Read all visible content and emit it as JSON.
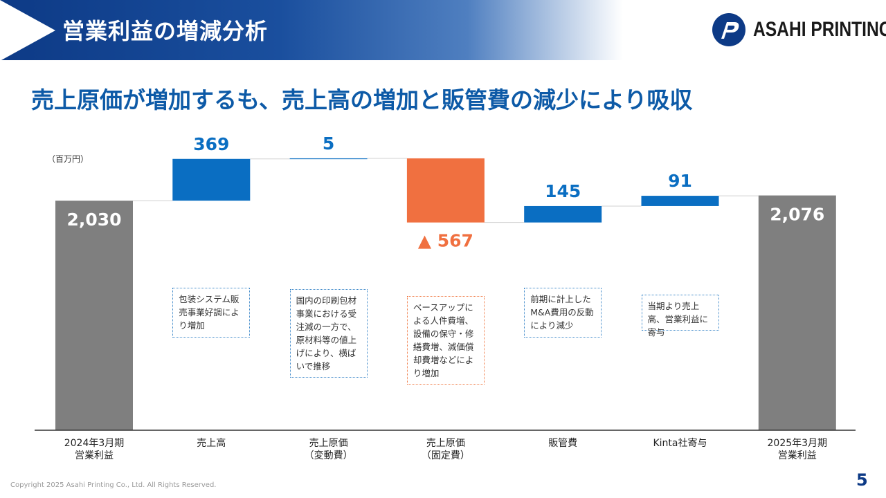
{
  "header": {
    "title": "営業利益の増減分析"
  },
  "logo": {
    "text": "ASAHI PRINTING"
  },
  "subtitle": "売上原価が増加するも、売上高の増加と販管費の減少により吸収",
  "unit": "（百万円）",
  "chart_data": {
    "type": "waterfall",
    "unit": "百万円",
    "categories": [
      [
        "2024年3月期",
        "営業利益"
      ],
      [
        "売上高"
      ],
      [
        "売上原価",
        "（変動費）"
      ],
      [
        "売上原価",
        "（固定費）"
      ],
      [
        "販管費"
      ],
      [
        "Kinta社寄与"
      ],
      [
        "2025年3月期",
        "営業利益"
      ]
    ],
    "steps": [
      {
        "kind": "total",
        "value": 2030,
        "label": "2,030"
      },
      {
        "kind": "increase",
        "value": 369,
        "label": "369"
      },
      {
        "kind": "increase",
        "value": 5,
        "label": "5"
      },
      {
        "kind": "decrease",
        "value": -567,
        "label": "▲ 567"
      },
      {
        "kind": "increase",
        "value": 145,
        "label": "145"
      },
      {
        "kind": "increase",
        "value": 91,
        "label": "91"
      },
      {
        "kind": "total",
        "value": 2076,
        "label": "2,076"
      }
    ],
    "colors": {
      "total": "#7f7f7f",
      "increase": "#0a6ec2",
      "decrease": "#f07040",
      "connector": "#d0d0d0",
      "axis": "#333333"
    }
  },
  "notes": [
    {
      "step": 1,
      "style": "blue",
      "text": "包装システム販売事業好調により増加"
    },
    {
      "step": 2,
      "style": "blue",
      "text": "国内の印刷包材事業における受注減の一方で、原材料等の値上げにより、横ばいで推移"
    },
    {
      "step": 3,
      "style": "orange",
      "text": "ベースアップによる人件費増、設備の保守・修繕費増、減価償却費増などにより増加"
    },
    {
      "step": 4,
      "style": "blue",
      "text": "前期に計上したM&A費用の反動により減少"
    },
    {
      "step": 5,
      "style": "blue",
      "text": "当期より売上高、営業利益に寄与"
    }
  ],
  "footer": {
    "copyright": "Copyright 2025 Asahi Printing Co., Ltd. All Rights Reserved.",
    "page": "5"
  }
}
